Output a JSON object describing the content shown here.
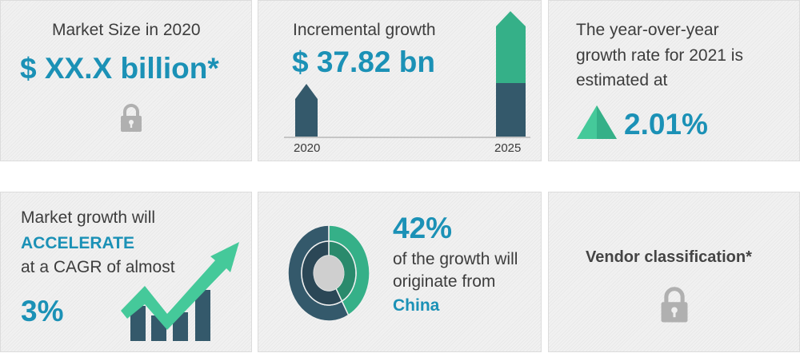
{
  "market_size": {
    "title": "Market Size in 2020",
    "value": "$ XX.X billion*",
    "icon": "lock-icon"
  },
  "incremental": {
    "title": "Incremental growth",
    "value": "$ 37.82 bn",
    "year_start": "2020",
    "year_end": "2025"
  },
  "yoy": {
    "line1": "The year-over-year",
    "line2": "growth rate for 2021 is",
    "line3": "estimated at",
    "value": "2.01%",
    "icon": "triangle-up-icon"
  },
  "cagr": {
    "line1": "Market growth will",
    "highlight": "ACCELERATE",
    "line3": "at a CAGR of almost",
    "value": "3%",
    "icon": "growth-arrow-chart-icon"
  },
  "region": {
    "value": "42%",
    "line1": "of the growth will",
    "line2": "originate from",
    "region": "China",
    "share": 0.42
  },
  "vendor": {
    "title": "Vendor classification*",
    "icon": "lock-icon"
  },
  "colors": {
    "accent": "#1b91b6",
    "dark": "#34596b",
    "green": "#35b088"
  }
}
